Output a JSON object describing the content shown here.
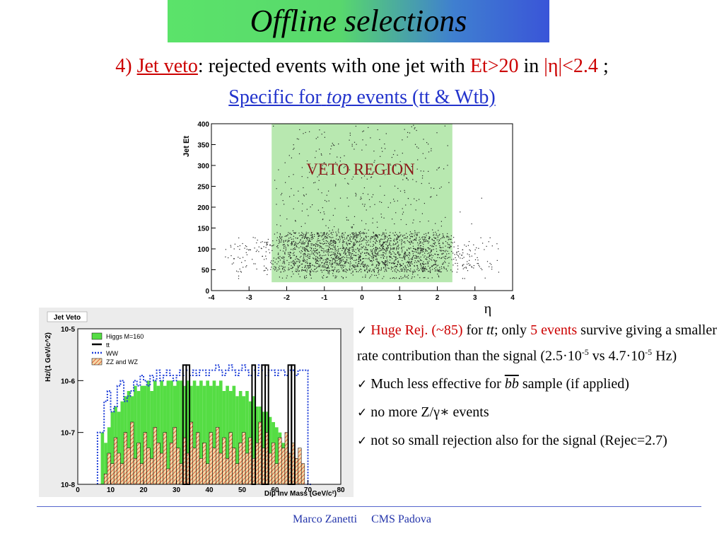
{
  "title": "Offline selections",
  "heading": {
    "number": "4)",
    "link": "Jet veto",
    "text1": ": rejected events with one jet with",
    "cond1": "Et>20",
    "text2": "in",
    "cond2": "|η|<2.4",
    "text3": ";"
  },
  "subheading": {
    "before": "Specific for",
    "italic": "top",
    "after": "events (tt & Wtb)"
  },
  "bullets": [
    {
      "red1": "Huge Rej. (~85)",
      "t1": "for",
      "ital": "tt",
      "t2": "; only",
      "red2": "5 events",
      "t3": "survive giving a  smaller rate contribution  than the signal (2.5·10",
      "sup1": "-5",
      "t4": " vs 4.7·10",
      "sup2": "-5",
      "t5": " Hz)"
    },
    {
      "t1": "Much less effective for",
      "ital": "bb",
      "t2": "sample (if applied)"
    },
    {
      "t1": "no more Z/γ∗ events"
    },
    {
      "t1": "not so small rejection also for the signal (Rejec=2.7)"
    }
  ],
  "footer": {
    "author": "Marco Zanetti",
    "org": "CMS Padova"
  },
  "chart_data": [
    {
      "type": "scatter",
      "title": "",
      "xlabel": "η",
      "ylabel": "Jet Et",
      "xlim": [
        -4,
        4
      ],
      "ylim": [
        0,
        400
      ],
      "xticks": [
        "-4",
        "-3",
        "-2",
        "-1",
        "0",
        "1",
        "2",
        "3",
        "4"
      ],
      "yticks": [
        "0",
        "50",
        "100",
        "150",
        "200",
        "250",
        "300",
        "350",
        "400"
      ],
      "annotation": "VETO REGION",
      "veto_region": {
        "x": [
          -2.4,
          2.4
        ],
        "y": [
          20,
          400
        ]
      },
      "region_color": "#b8e8b0",
      "distribution": {
        "dense_eta_range": [
          -2.4,
          2.4
        ],
        "dense_et_range": [
          30,
          150
        ],
        "max_eta": 3.8
      }
    },
    {
      "type": "bar",
      "title": "Jet Veto",
      "xlabel": "Diμ Inv Mass (GeV/c²)",
      "ylabel": "Hz/(1 GeV/c^2)",
      "log_y": true,
      "xlim": [
        0,
        80
      ],
      "ylim_exp": [
        -8,
        -5
      ],
      "xticks": [
        "0",
        "10",
        "20",
        "30",
        "40",
        "50",
        "60",
        "70",
        "80"
      ],
      "yticks": [
        "10-5",
        "10-6",
        "10-7",
        "10-8"
      ],
      "legend": [
        "Higgs M=160",
        "tt",
        "WW",
        "ZZ and WZ"
      ],
      "legend_position": "top-left",
      "bin_width": 1,
      "series": [
        {
          "name": "Higgs M=160",
          "color": "#55dd44",
          "style": "filled",
          "x_start": 5,
          "values": [
            -8.0,
            -8.0,
            -7.0,
            -7.2,
            -6.9,
            -6.6,
            -6.5,
            -6.6,
            -6.4,
            -6.3,
            -6.2,
            -6.3,
            -6.1,
            -6.2,
            -6.1,
            -6.1,
            -6.0,
            -6.2,
            -6.0,
            -6.1,
            -6.0,
            -6.1,
            -6.0,
            -6.0,
            -6.1,
            -6.0,
            -6.0,
            -6.1,
            -6.0,
            -6.1,
            -6.0,
            -6.1,
            -6.0,
            -6.1,
            -6.0,
            -6.1,
            -6.0,
            -6.1,
            -6.0,
            -6.2,
            -6.1,
            -6.2,
            -6.1,
            -6.3,
            -6.2,
            -6.3,
            -6.2,
            -6.4,
            -6.3,
            -6.5,
            -6.5,
            -6.6,
            -6.6,
            -6.7,
            -6.8,
            -6.9,
            -7.0,
            -7.2,
            -7.3,
            -7.5,
            -7.6,
            -7.7,
            -8.0,
            -8.0,
            -8.0
          ]
        },
        {
          "name": "tt",
          "color": "#000000",
          "style": "step",
          "spikes": [
            [
              32,
              -5.7
            ],
            [
              33,
              -5.7
            ],
            [
              53,
              -5.7
            ],
            [
              56,
              -5.7
            ],
            [
              57,
              -5.7
            ],
            [
              64,
              -5.7
            ],
            [
              65,
              -5.7
            ]
          ]
        },
        {
          "name": "WW",
          "color": "#1f3fd8",
          "style": "dotted",
          "x_start": 6,
          "values": [
            -7.0,
            -7.0,
            -6.4,
            -6.2,
            -6.6,
            -6.5,
            -6.1,
            -6.0,
            -6.4,
            -6.3,
            -6.2,
            -6.0,
            -6.1,
            -5.9,
            -6.0,
            -6.1,
            -5.9,
            -6.0,
            -5.8,
            -6.0,
            -5.9,
            -5.8,
            -5.9,
            -6.0,
            -5.9,
            -5.8,
            -5.9,
            -5.8,
            -5.9,
            -5.8,
            -5.9,
            -5.8,
            -5.8,
            -5.9,
            -5.8,
            -5.8,
            -5.7,
            -5.8,
            -5.9,
            -5.8,
            -5.7,
            -5.8,
            -5.9,
            -5.8,
            -5.7,
            -5.8,
            -5.9,
            -5.8,
            -5.9,
            -5.7,
            -5.8,
            -5.9,
            -5.8,
            -5.8,
            -5.9,
            -5.8,
            -5.8,
            -5.9,
            -5.8,
            -5.8,
            -5.9,
            -5.8,
            -5.8,
            -5.8,
            -8.0
          ]
        },
        {
          "name": "ZZ and WZ",
          "color": "#e04020",
          "style": "hatched",
          "x_start": 8,
          "values": [
            -7.8,
            -7.4,
            -7.6,
            -7.1,
            -7.4,
            -7.6,
            -7.0,
            -7.3,
            -6.8,
            -7.5,
            -7.2,
            -7.6,
            -7.0,
            -7.3,
            -7.5,
            -6.9,
            -7.2,
            -7.4,
            -7.0,
            -7.7,
            -7.2,
            -6.9,
            -7.3,
            -7.6,
            -7.1,
            -7.4,
            -6.8,
            -7.3,
            -7.0,
            -7.5,
            -7.2,
            -7.6,
            -7.0,
            -7.3,
            -6.9,
            -7.4,
            -7.1,
            -7.5,
            -7.0,
            -7.3,
            -7.6,
            -7.2,
            -7.0,
            -7.4,
            -7.1,
            -7.5,
            -7.2,
            -6.8,
            -7.3,
            -7.0,
            -7.4,
            -7.2,
            -7.6,
            -7.1,
            -7.3,
            -7.0,
            -7.4,
            -7.2,
            -7.5,
            -7.3,
            -7.6,
            -8.0
          ]
        }
      ]
    }
  ]
}
